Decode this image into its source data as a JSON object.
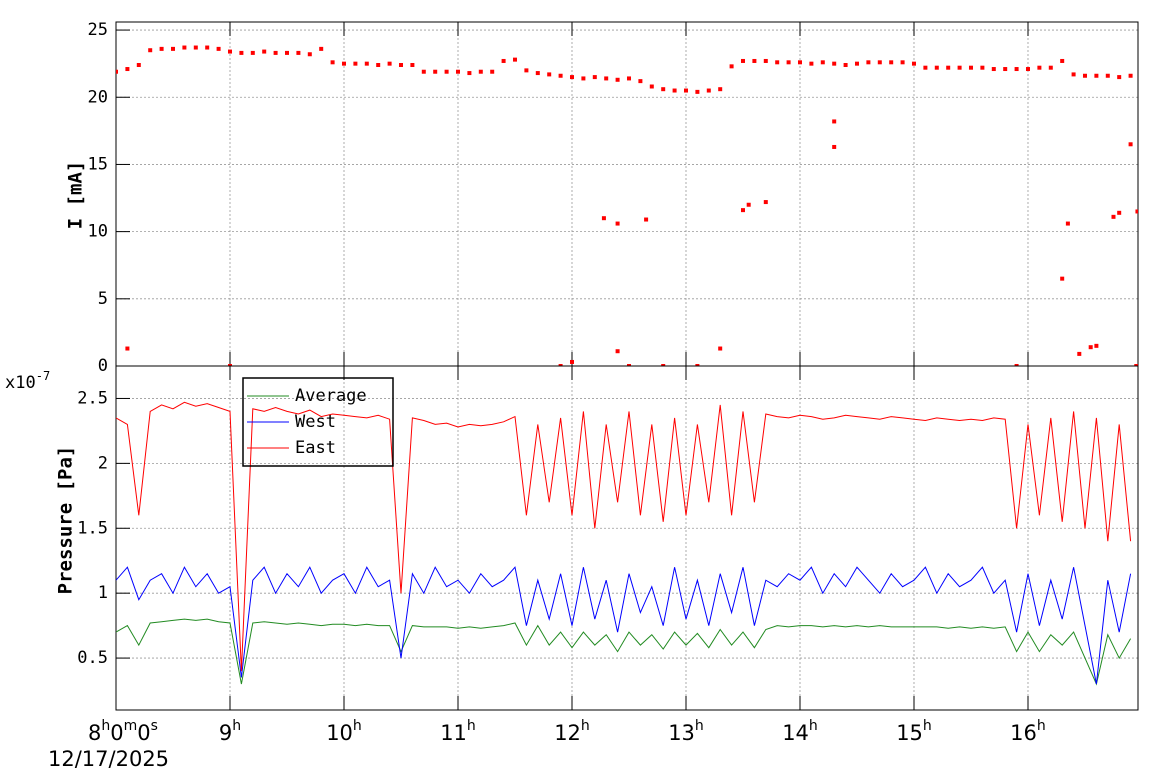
{
  "chart_data": [
    {
      "type": "scatter",
      "ylabel": "I [mA]",
      "color": "#ff0000",
      "grid": true,
      "xlim": [
        8,
        16.965
      ],
      "xticks": [
        8,
        9,
        10,
        11,
        12,
        13,
        14,
        15,
        16
      ],
      "ylim": [
        0,
        25.6
      ],
      "yticks": [
        0,
        5,
        10,
        15,
        20,
        25
      ],
      "x": [
        8.0,
        8.1,
        8.2,
        8.3,
        8.4,
        8.5,
        8.6,
        8.7,
        8.8,
        8.9,
        9.0,
        9.1,
        9.2,
        9.3,
        9.4,
        9.5,
        9.6,
        9.7,
        9.8,
        9.9,
        10.0,
        10.1,
        10.2,
        10.3,
        10.4,
        10.5,
        10.6,
        10.7,
        10.8,
        10.9,
        11.0,
        11.1,
        11.2,
        11.3,
        11.4,
        11.5,
        11.6,
        11.7,
        11.8,
        11.9,
        12.0,
        12.1,
        12.2,
        12.3,
        12.4,
        12.5,
        12.6,
        12.7,
        12.8,
        12.9,
        13.0,
        13.1,
        13.2,
        13.3,
        13.4,
        13.5,
        13.6,
        13.7,
        13.8,
        13.9,
        14.0,
        14.1,
        14.2,
        14.3,
        14.4,
        14.5,
        14.6,
        14.7,
        14.8,
        14.9,
        15.0,
        15.1,
        15.2,
        15.3,
        15.4,
        15.5,
        15.6,
        15.7,
        15.8,
        15.9,
        16.0,
        16.1,
        16.2,
        16.3,
        16.4,
        16.5,
        16.6,
        16.7,
        16.8,
        16.9,
        8.1,
        9.0,
        12.0,
        12.28,
        12.4,
        12.4,
        12.65,
        13.3,
        13.5,
        13.55,
        13.7,
        14.3,
        14.3,
        16.3,
        16.35,
        16.45,
        16.55,
        16.6,
        16.75,
        16.8,
        16.9,
        16.96,
        11.9,
        12.5,
        12.8,
        13.1,
        15.9,
        16.95
      ],
      "values": [
        21.9,
        22.1,
        22.4,
        23.5,
        23.6,
        23.6,
        23.7,
        23.7,
        23.7,
        23.6,
        23.4,
        23.3,
        23.3,
        23.4,
        23.3,
        23.3,
        23.3,
        23.2,
        23.6,
        22.6,
        22.5,
        22.5,
        22.5,
        22.4,
        22.5,
        22.4,
        22.4,
        21.9,
        21.9,
        21.9,
        21.9,
        21.8,
        21.9,
        21.9,
        22.7,
        22.8,
        22.0,
        21.8,
        21.7,
        21.6,
        21.5,
        21.4,
        21.5,
        21.4,
        21.3,
        21.4,
        21.2,
        20.8,
        20.6,
        20.5,
        20.5,
        20.4,
        20.5,
        20.6,
        22.3,
        22.7,
        22.7,
        22.7,
        22.6,
        22.6,
        22.6,
        22.5,
        22.6,
        22.5,
        22.4,
        22.5,
        22.6,
        22.6,
        22.6,
        22.6,
        22.5,
        22.2,
        22.2,
        22.2,
        22.2,
        22.2,
        22.2,
        22.1,
        22.1,
        22.1,
        22.1,
        22.2,
        22.2,
        22.7,
        21.7,
        21.6,
        21.6,
        21.6,
        21.5,
        21.6,
        1.3,
        0,
        0.3,
        11,
        10.6,
        1.1,
        10.9,
        1.3,
        11.6,
        12,
        12.2,
        18.2,
        16.3,
        6.5,
        10.6,
        0.9,
        1.4,
        1.5,
        11.1,
        11.4,
        16.5,
        11.5,
        0,
        0,
        0,
        0,
        0,
        0
      ]
    },
    {
      "type": "line",
      "ylabel": "Pressure [Pa]",
      "y_multiplier": "x10",
      "y_exponent": "-7",
      "grid": true,
      "legend": "upper left",
      "x_date": "12/17/2025",
      "xlim": [
        8,
        16.965
      ],
      "xticks": [
        {
          "value": 8,
          "label": "8h0m0s"
        },
        {
          "value": 9,
          "label": "9h"
        },
        {
          "value": 10,
          "label": "10h"
        },
        {
          "value": 11,
          "label": "11h"
        },
        {
          "value": 12,
          "label": "12h"
        },
        {
          "value": 13,
          "label": "13h"
        },
        {
          "value": 14,
          "label": "14h"
        },
        {
          "value": 15,
          "label": "15h"
        },
        {
          "value": 16,
          "label": "16h"
        }
      ],
      "ylim": [
        0.1,
        2.75
      ],
      "yticks": [
        0.5,
        1,
        1.5,
        2,
        2.5
      ],
      "x": [
        8.0,
        8.1,
        8.2,
        8.3,
        8.4,
        8.5,
        8.6,
        8.7,
        8.8,
        8.9,
        9.0,
        9.1,
        9.2,
        9.3,
        9.4,
        9.5,
        9.6,
        9.7,
        9.8,
        9.9,
        10.0,
        10.1,
        10.2,
        10.3,
        10.4,
        10.5,
        10.6,
        10.7,
        10.8,
        10.9,
        11.0,
        11.1,
        11.2,
        11.3,
        11.4,
        11.5,
        11.6,
        11.7,
        11.8,
        11.9,
        12.0,
        12.1,
        12.2,
        12.3,
        12.4,
        12.5,
        12.6,
        12.7,
        12.8,
        12.9,
        13.0,
        13.1,
        13.2,
        13.3,
        13.4,
        13.5,
        13.6,
        13.7,
        13.8,
        13.9,
        14.0,
        14.1,
        14.2,
        14.3,
        14.4,
        14.5,
        14.6,
        14.7,
        14.8,
        14.9,
        15.0,
        15.1,
        15.2,
        15.3,
        15.4,
        15.5,
        15.6,
        15.7,
        15.8,
        15.9,
        16.0,
        16.1,
        16.2,
        16.3,
        16.4,
        16.5,
        16.6,
        16.7,
        16.8,
        16.9
      ],
      "series": [
        {
          "name": "Average",
          "color": "#228b22",
          "values": [
            0.7,
            0.75,
            0.6,
            0.77,
            0.78,
            0.79,
            0.8,
            0.79,
            0.8,
            0.78,
            0.77,
            0.3,
            0.77,
            0.78,
            0.77,
            0.76,
            0.77,
            0.76,
            0.75,
            0.76,
            0.76,
            0.75,
            0.76,
            0.75,
            0.75,
            0.55,
            0.75,
            0.74,
            0.74,
            0.74,
            0.73,
            0.74,
            0.73,
            0.74,
            0.75,
            0.77,
            0.6,
            0.75,
            0.6,
            0.7,
            0.58,
            0.7,
            0.6,
            0.68,
            0.55,
            0.7,
            0.6,
            0.68,
            0.57,
            0.7,
            0.6,
            0.69,
            0.58,
            0.72,
            0.6,
            0.7,
            0.58,
            0.72,
            0.75,
            0.74,
            0.75,
            0.75,
            0.74,
            0.75,
            0.74,
            0.75,
            0.74,
            0.75,
            0.74,
            0.74,
            0.74,
            0.74,
            0.74,
            0.73,
            0.74,
            0.73,
            0.74,
            0.73,
            0.74,
            0.55,
            0.7,
            0.55,
            0.68,
            0.6,
            0.7,
            0.5,
            0.3,
            0.68,
            0.5,
            0.65
          ]
        },
        {
          "name": "West",
          "color": "#0000ff",
          "values": [
            1.1,
            1.2,
            0.95,
            1.1,
            1.15,
            1.0,
            1.2,
            1.05,
            1.15,
            1.0,
            1.05,
            0.35,
            1.1,
            1.2,
            1.0,
            1.15,
            1.05,
            1.2,
            1.0,
            1.1,
            1.15,
            1.0,
            1.2,
            1.05,
            1.1,
            0.5,
            1.15,
            1.0,
            1.2,
            1.05,
            1.1,
            1.0,
            1.15,
            1.05,
            1.1,
            1.2,
            0.75,
            1.1,
            0.8,
            1.15,
            0.75,
            1.2,
            0.8,
            1.1,
            0.7,
            1.15,
            0.85,
            1.05,
            0.75,
            1.2,
            0.8,
            1.1,
            0.75,
            1.15,
            0.85,
            1.2,
            0.75,
            1.1,
            1.05,
            1.15,
            1.1,
            1.2,
            1.0,
            1.15,
            1.05,
            1.2,
            1.1,
            1.0,
            1.15,
            1.05,
            1.1,
            1.2,
            1.0,
            1.15,
            1.05,
            1.1,
            1.2,
            1.0,
            1.1,
            0.7,
            1.15,
            0.75,
            1.1,
            0.8,
            1.2,
            0.75,
            0.3,
            1.1,
            0.7,
            1.15
          ]
        },
        {
          "name": "East",
          "color": "#ff0000",
          "values": [
            2.35,
            2.3,
            1.6,
            2.4,
            2.45,
            2.42,
            2.47,
            2.44,
            2.46,
            2.43,
            2.4,
            0.4,
            2.42,
            2.4,
            2.43,
            2.4,
            2.38,
            2.41,
            2.36,
            2.38,
            2.37,
            2.36,
            2.35,
            2.37,
            2.34,
            1.0,
            2.35,
            2.33,
            2.3,
            2.31,
            2.28,
            2.3,
            2.29,
            2.3,
            2.32,
            2.36,
            1.6,
            2.3,
            1.7,
            2.35,
            1.6,
            2.4,
            1.5,
            2.3,
            1.7,
            2.4,
            1.6,
            2.3,
            1.55,
            2.35,
            1.6,
            2.3,
            1.7,
            2.45,
            1.6,
            2.4,
            1.7,
            2.38,
            2.36,
            2.35,
            2.37,
            2.36,
            2.34,
            2.35,
            2.37,
            2.36,
            2.35,
            2.34,
            2.36,
            2.35,
            2.34,
            2.33,
            2.35,
            2.34,
            2.33,
            2.34,
            2.33,
            2.35,
            2.34,
            1.5,
            2.3,
            1.6,
            2.35,
            1.55,
            2.4,
            1.5,
            2.35,
            1.4,
            2.3,
            1.4
          ]
        }
      ]
    }
  ]
}
